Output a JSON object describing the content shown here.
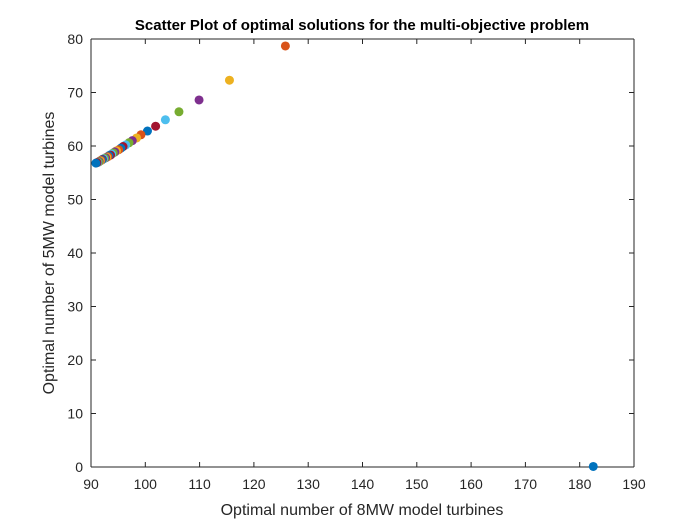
{
  "chart_data": {
    "type": "scatter",
    "title": "Scatter Plot of optimal solutions for the multi-objective problem",
    "xlabel": "Optimal number of 8MW model turbines",
    "ylabel": "Optimal number of 5MW model turbines",
    "xlim": [
      90,
      190
    ],
    "ylim": [
      0,
      80
    ],
    "xticks": [
      90,
      100,
      110,
      120,
      130,
      140,
      150,
      160,
      170,
      180,
      190
    ],
    "yticks": [
      0,
      10,
      20,
      30,
      40,
      50,
      60,
      70,
      80
    ],
    "grid": false,
    "legend": "none",
    "colors": [
      "#0072BD",
      "#D95319",
      "#EDB120",
      "#7E2F8E",
      "#77AC30",
      "#4DBEEE",
      "#A2142F"
    ],
    "points": [
      {
        "x": 182.5,
        "y": 0.1
      },
      {
        "x": 125.8,
        "y": 78.7
      },
      {
        "x": 115.5,
        "y": 72.3
      },
      {
        "x": 109.9,
        "y": 68.6
      },
      {
        "x": 106.2,
        "y": 66.4
      },
      {
        "x": 103.7,
        "y": 64.9
      },
      {
        "x": 101.9,
        "y": 63.7
      },
      {
        "x": 100.4,
        "y": 62.8
      },
      {
        "x": 99.2,
        "y": 62.1
      },
      {
        "x": 98.4,
        "y": 61.5
      },
      {
        "x": 97.6,
        "y": 61.0
      },
      {
        "x": 97.0,
        "y": 60.6
      },
      {
        "x": 96.4,
        "y": 60.2
      },
      {
        "x": 95.9,
        "y": 59.9
      },
      {
        "x": 95.5,
        "y": 59.6
      },
      {
        "x": 95.1,
        "y": 59.3
      },
      {
        "x": 94.7,
        "y": 59.1
      },
      {
        "x": 94.4,
        "y": 58.9
      },
      {
        "x": 94.1,
        "y": 58.7
      },
      {
        "x": 93.8,
        "y": 58.5
      },
      {
        "x": 93.6,
        "y": 58.3
      },
      {
        "x": 93.3,
        "y": 58.2
      },
      {
        "x": 93.1,
        "y": 58.0
      },
      {
        "x": 92.9,
        "y": 57.9
      },
      {
        "x": 92.7,
        "y": 57.8
      },
      {
        "x": 92.5,
        "y": 57.7
      },
      {
        "x": 92.3,
        "y": 57.6
      },
      {
        "x": 92.1,
        "y": 57.5
      },
      {
        "x": 92.0,
        "y": 57.4
      },
      {
        "x": 91.8,
        "y": 57.3
      },
      {
        "x": 91.7,
        "y": 57.2
      },
      {
        "x": 91.5,
        "y": 57.1
      },
      {
        "x": 91.4,
        "y": 57.0
      },
      {
        "x": 91.2,
        "y": 56.9
      },
      {
        "x": 91.1,
        "y": 56.9
      },
      {
        "x": 90.9,
        "y": 56.8
      }
    ]
  }
}
